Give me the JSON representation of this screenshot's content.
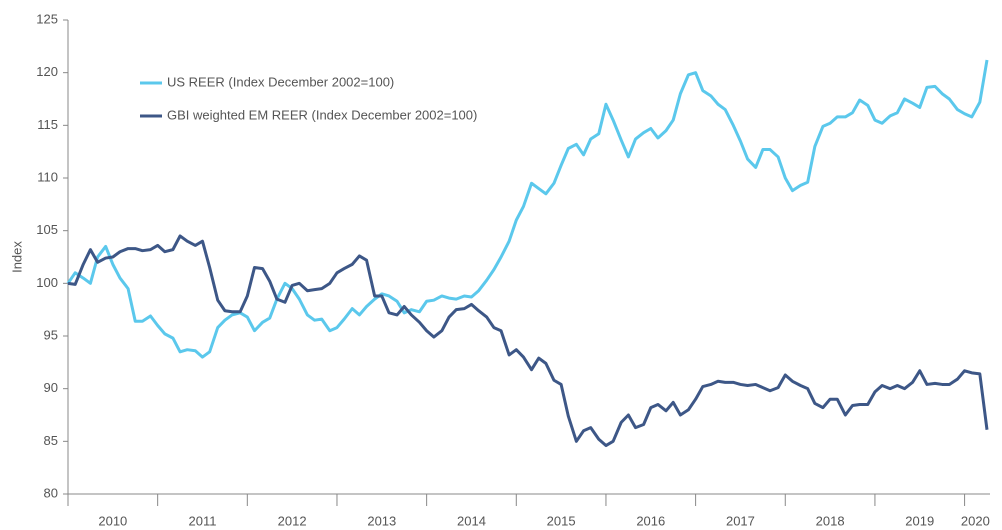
{
  "chart_data": {
    "type": "line",
    "y_label": "Index",
    "xlim": [
      2010,
      2020.25
    ],
    "xticks": [
      {
        "value": 2010.5,
        "label": "2010"
      },
      {
        "value": 2011.5,
        "label": "2011"
      },
      {
        "value": 2012.5,
        "label": "2012"
      },
      {
        "value": 2013.5,
        "label": "2013"
      },
      {
        "value": 2014.5,
        "label": "2014"
      },
      {
        "value": 2015.5,
        "label": "2015"
      },
      {
        "value": 2016.5,
        "label": "2016"
      },
      {
        "value": 2017.5,
        "label": "2017"
      },
      {
        "value": 2018.5,
        "label": "2018"
      },
      {
        "value": 2019.5,
        "label": "2019"
      },
      {
        "value": 2020.12,
        "label": "2020"
      }
    ],
    "x_boundaries": [
      2010,
      2011,
      2012,
      2013,
      2014,
      2015,
      2016,
      2017,
      2018,
      2019,
      2020
    ],
    "ylim": [
      80,
      125
    ],
    "yticks": [
      80,
      85,
      90,
      95,
      100,
      105,
      110,
      115,
      120,
      125
    ],
    "grid": false,
    "legend": "upper left",
    "x": [
      2010.0,
      2010.08,
      2010.17,
      2010.25,
      2010.33,
      2010.42,
      2010.5,
      2010.58,
      2010.67,
      2010.75,
      2010.83,
      2010.92,
      2011.0,
      2011.08,
      2011.17,
      2011.25,
      2011.33,
      2011.42,
      2011.5,
      2011.58,
      2011.67,
      2011.75,
      2011.83,
      2011.92,
      2012.0,
      2012.08,
      2012.17,
      2012.25,
      2012.33,
      2012.42,
      2012.5,
      2012.58,
      2012.67,
      2012.75,
      2012.83,
      2012.92,
      2013.0,
      2013.08,
      2013.17,
      2013.25,
      2013.33,
      2013.42,
      2013.5,
      2013.58,
      2013.67,
      2013.75,
      2013.83,
      2013.92,
      2014.0,
      2014.08,
      2014.17,
      2014.25,
      2014.33,
      2014.42,
      2014.5,
      2014.58,
      2014.67,
      2014.75,
      2014.83,
      2014.92,
      2015.0,
      2015.08,
      2015.17,
      2015.25,
      2015.33,
      2015.42,
      2015.5,
      2015.58,
      2015.67,
      2015.75,
      2015.83,
      2015.92,
      2016.0,
      2016.08,
      2016.17,
      2016.25,
      2016.33,
      2016.42,
      2016.5,
      2016.58,
      2016.67,
      2016.75,
      2016.83,
      2016.92,
      2017.0,
      2017.08,
      2017.17,
      2017.25,
      2017.33,
      2017.42,
      2017.5,
      2017.58,
      2017.67,
      2017.75,
      2017.83,
      2017.92,
      2018.0,
      2018.08,
      2018.17,
      2018.25,
      2018.33,
      2018.42,
      2018.5,
      2018.58,
      2018.67,
      2018.75,
      2018.83,
      2018.92,
      2019.0,
      2019.08,
      2019.17,
      2019.25,
      2019.33,
      2019.42,
      2019.5,
      2019.58,
      2019.67,
      2019.75,
      2019.83,
      2019.92,
      2020.0,
      2020.08,
      2020.17,
      2020.25
    ],
    "series": [
      {
        "name": "US REER (Index December 2002=100)",
        "color": "#5bc8ec",
        "values": [
          100,
          101,
          100.5,
          100,
          102.5,
          103.5,
          101.8,
          100.5,
          99.5,
          96.4,
          96.4,
          96.9,
          96,
          95.2,
          94.8,
          93.5,
          93.7,
          93.6,
          93,
          93.5,
          95.8,
          96.5,
          97,
          97.2,
          96.8,
          95.5,
          96.3,
          96.7,
          98.5,
          100,
          99.5,
          98.5,
          97,
          96.5,
          96.6,
          95.5,
          95.8,
          96.6,
          97.6,
          97,
          97.8,
          98.5,
          99,
          98.8,
          98.3,
          97.2,
          97.5,
          97.3,
          98.3,
          98.4,
          98.8,
          98.6,
          98.5,
          98.8,
          98.7,
          99.3,
          100.3,
          101.3,
          102.5,
          104,
          106,
          107.3,
          109.5,
          109,
          108.5,
          109.5,
          111.2,
          112.8,
          113.2,
          112.2,
          113.7,
          114.2,
          117,
          115.5,
          113.6,
          112,
          113.7,
          114.3,
          114.7,
          113.8,
          114.5,
          115.5,
          118,
          119.8,
          120,
          118.3,
          117.8,
          117,
          116.5,
          115,
          113.5,
          111.8,
          111,
          112.7,
          112.7,
          112,
          110,
          108.8,
          109.3,
          109.6,
          113,
          114.9,
          115.2,
          115.8,
          115.8,
          116.2,
          117.4,
          116.9,
          115.5,
          115.2,
          115.9,
          116.2,
          117.5,
          117.1,
          116.7,
          118.6,
          118.7,
          118,
          117.5,
          116.5,
          116.1,
          115.8,
          117.2,
          121.2
        ]
      },
      {
        "name": "GBI weighted EM REER (Index December 2002=100)",
        "color": "#3d5787",
        "values": [
          100,
          99.9,
          101.8,
          103.2,
          102,
          102.4,
          102.5,
          103,
          103.3,
          103.3,
          103.1,
          103.2,
          103.6,
          103,
          103.2,
          104.5,
          104,
          103.6,
          104,
          101.5,
          98.4,
          97.4,
          97.3,
          97.3,
          98.8,
          101.5,
          101.4,
          100.2,
          98.5,
          98.2,
          99.8,
          100,
          99.3,
          99.4,
          99.5,
          100,
          101,
          101.4,
          101.8,
          102.6,
          102.2,
          98.8,
          98.8,
          97.2,
          97,
          97.8,
          97,
          96.3,
          95.5,
          94.9,
          95.5,
          96.8,
          97.5,
          97.6,
          98,
          97.4,
          96.8,
          95.8,
          95.5,
          93.2,
          93.7,
          93,
          91.8,
          92.9,
          92.4,
          90.8,
          90.4,
          87.4,
          85,
          86,
          86.3,
          85.2,
          84.6,
          85,
          86.8,
          87.5,
          86.3,
          86.6,
          88.2,
          88.5,
          87.9,
          88.7,
          87.5,
          88,
          89,
          90.2,
          90.4,
          90.7,
          90.6,
          90.6,
          90.4,
          90.3,
          90.4,
          90.1,
          89.8,
          90.1,
          91.3,
          90.7,
          90.3,
          90,
          88.6,
          88.2,
          89,
          89,
          87.5,
          88.4,
          88.5,
          88.5,
          89.7,
          90.3,
          90,
          90.3,
          90,
          90.6,
          91.7,
          90.4,
          90.5,
          90.4,
          90.4,
          90.9,
          91.7,
          91.5,
          91.4,
          86.1
        ]
      }
    ]
  }
}
